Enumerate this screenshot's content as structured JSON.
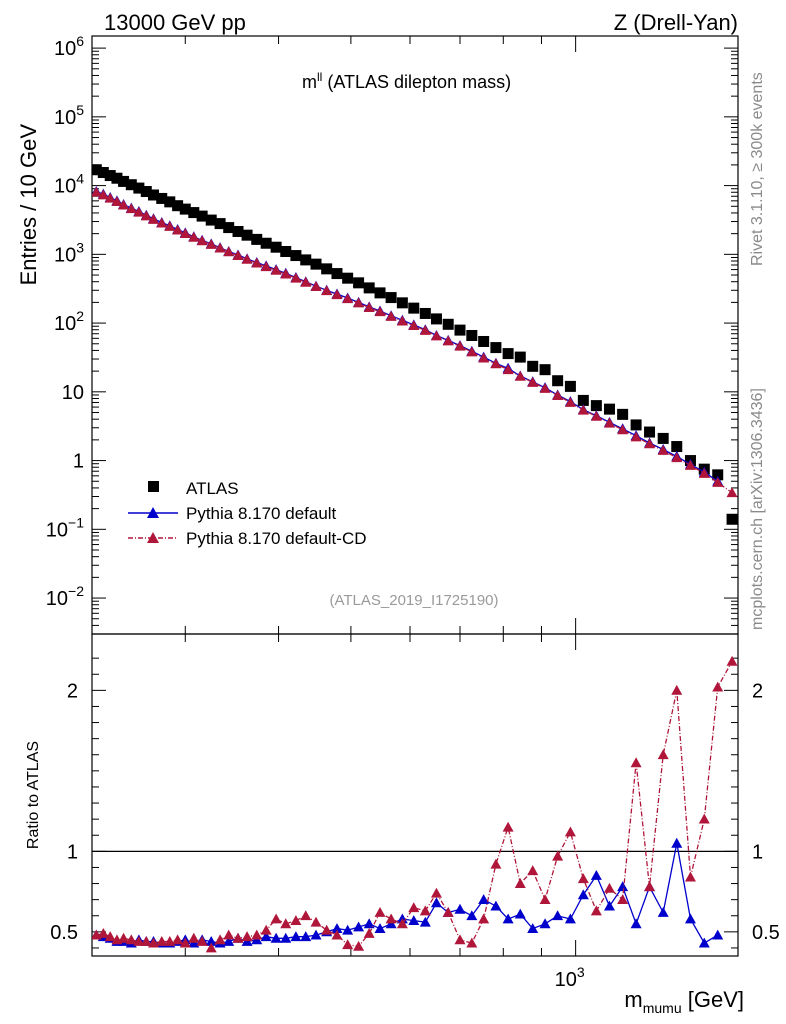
{
  "header": {
    "left_title": "13000 GeV pp",
    "right_title": "Z (Drell-Yan)"
  },
  "plot_title": {
    "main": "m",
    "sup": "ll",
    "rest": " (ATLAS dilepton mass)"
  },
  "side_notes": {
    "rivet": "Rivet 3.1.10, ≥ 300k events",
    "mcplots": "mcplots.cern.ch [arXiv:1306.3436]"
  },
  "analysis_id": "(ATLAS_2019_I1725190)",
  "chart_data": [
    {
      "type": "scatter",
      "panel": "main",
      "ylabel": "Entries / 10 GeV",
      "yscale": "log",
      "xscale": "log",
      "xlim": [
        225,
        1650
      ],
      "ylim": [
        0.003,
        1500000
      ],
      "y_ticks": [
        {
          "value": 1000000,
          "base": "10",
          "exp": "6"
        },
        {
          "value": 100000,
          "base": "10",
          "exp": "5"
        },
        {
          "value": 10000,
          "base": "10",
          "exp": "4"
        },
        {
          "value": 1000,
          "base": "10",
          "exp": "3"
        },
        {
          "value": 100,
          "base": "10",
          "exp": "2"
        },
        {
          "value": 10,
          "base": "10",
          "exp": ""
        },
        {
          "value": 1,
          "base": "1",
          "exp": ""
        },
        {
          "value": 0.1,
          "base": "10",
          "exp": "−1"
        },
        {
          "value": 0.01,
          "base": "10",
          "exp": "−2"
        }
      ],
      "legend": {
        "position": "bottom-left",
        "entries": [
          "ATLAS",
          "Pythia 8.170 default",
          "Pythia 8.170 default-CD"
        ]
      },
      "series": [
        {
          "name": "ATLAS",
          "color": "#000000",
          "marker": "square",
          "x": [
            228,
            233,
            238,
            243,
            248,
            254,
            260,
            266,
            272,
            279,
            286,
            293,
            300,
            308,
            316,
            325,
            334,
            343,
            353,
            363,
            374,
            385,
            397,
            409,
            422,
            435,
            449,
            464,
            479,
            495,
            512,
            529,
            547,
            566,
            586,
            607,
            629,
            651,
            675,
            700,
            726,
            753,
            782,
            812,
            843,
            876,
            910,
            946,
            984,
            1024,
            1066,
            1110,
            1156,
            1205,
            1256,
            1310,
            1366,
            1425,
            1487,
            1550,
            1620
          ],
          "values": [
            17000,
            15500,
            14000,
            12800,
            11500,
            10300,
            9200,
            8200,
            7300,
            6500,
            5800,
            5100,
            4550,
            4050,
            3600,
            3150,
            2800,
            2450,
            2150,
            1900,
            1650,
            1450,
            1270,
            1100,
            960,
            830,
            720,
            615,
            525,
            450,
            385,
            325,
            275,
            235,
            197,
            165,
            138,
            115,
            96,
            79,
            66,
            54,
            44,
            36,
            32,
            23.5,
            21,
            14.5,
            12,
            7.5,
            6.3,
            5.6,
            4.7,
            3.3,
            2.6,
            2.1,
            1.6,
            1.0,
            0.75,
            0.62,
            0.14
          ]
        },
        {
          "name": "Pythia 8.170 default",
          "color": "#0000cc",
          "marker": "triangle",
          "x": [
            228,
            233,
            238,
            243,
            248,
            254,
            260,
            266,
            272,
            279,
            286,
            293,
            300,
            308,
            316,
            325,
            334,
            343,
            353,
            363,
            374,
            385,
            397,
            409,
            422,
            435,
            449,
            464,
            479,
            495,
            512,
            529,
            547,
            566,
            586,
            607,
            629,
            651,
            675,
            700,
            726,
            753,
            782,
            812,
            843,
            876,
            910,
            946,
            984,
            1024,
            1066,
            1110,
            1156,
            1205,
            1256,
            1310,
            1366,
            1425,
            1487,
            1550
          ],
          "values": [
            8200,
            7500,
            6700,
            6000,
            5300,
            4700,
            4200,
            3700,
            3300,
            2900,
            2600,
            2300,
            2050,
            1800,
            1600,
            1420,
            1250,
            1100,
            980,
            860,
            760,
            680,
            600,
            530,
            460,
            400,
            345,
            300,
            265,
            232,
            200,
            172,
            150,
            128,
            110,
            94,
            80,
            66,
            56,
            47,
            39,
            32,
            26,
            22,
            17,
            14,
            11.5,
            9,
            7.2,
            5.5,
            4.5,
            3.6,
            2.9,
            2.3,
            1.8,
            1.45,
            1.15,
            0.88,
            0.68,
            0.5
          ]
        },
        {
          "name": "Pythia 8.170 default-CD",
          "color": "#b0163a",
          "marker": "triangle",
          "x": [
            228,
            233,
            238,
            243,
            248,
            254,
            260,
            266,
            272,
            279,
            286,
            293,
            300,
            308,
            316,
            325,
            334,
            343,
            353,
            363,
            374,
            385,
            397,
            409,
            422,
            435,
            449,
            464,
            479,
            495,
            512,
            529,
            547,
            566,
            586,
            607,
            629,
            651,
            675,
            700,
            726,
            753,
            782,
            812,
            843,
            876,
            910,
            946,
            984,
            1024,
            1066,
            1110,
            1156,
            1205,
            1256,
            1310,
            1366,
            1425,
            1487,
            1550,
            1620
          ],
          "values": [
            8000,
            7300,
            6550,
            5850,
            5200,
            4600,
            4100,
            3620,
            3220,
            2850,
            2540,
            2250,
            2000,
            1770,
            1570,
            1390,
            1230,
            1085,
            960,
            845,
            745,
            660,
            585,
            515,
            450,
            392,
            340,
            295,
            258,
            226,
            196,
            168,
            146,
            125,
            107,
            92,
            78,
            65,
            55,
            46,
            38,
            31,
            25.5,
            21,
            16.8,
            13.7,
            11.2,
            8.8,
            7,
            5.4,
            4.4,
            3.5,
            2.8,
            2.2,
            1.75,
            1.4,
            1.1,
            0.85,
            0.65,
            0.48,
            0.34
          ]
        }
      ]
    },
    {
      "type": "line",
      "panel": "ratio",
      "ylabel": "Ratio to ATLAS",
      "xlabel_main": "m",
      "xlabel_sub": "mumu",
      "xlabel_unit": " [GeV]",
      "xscale": "log",
      "xlim": [
        225,
        1650
      ],
      "ylim": [
        0.35,
        2.35
      ],
      "x_ticks": [
        {
          "value": 1000,
          "base": "10",
          "exp": "3"
        }
      ],
      "y_ticks": [
        {
          "value": 0.5,
          "label": "0.5"
        },
        {
          "value": 1,
          "label": "1"
        },
        {
          "value": 2,
          "label": "2"
        }
      ],
      "reference_line": 1,
      "series": [
        {
          "name": "Pythia 8.170 default",
          "color": "#0000cc",
          "x": [
            228,
            233,
            238,
            243,
            248,
            254,
            260,
            266,
            272,
            279,
            286,
            293,
            300,
            308,
            316,
            325,
            334,
            343,
            353,
            363,
            374,
            385,
            397,
            409,
            422,
            435,
            449,
            464,
            479,
            495,
            512,
            529,
            547,
            566,
            586,
            607,
            629,
            651,
            675,
            700,
            726,
            753,
            782,
            812,
            843,
            876,
            910,
            946,
            984,
            1024,
            1066,
            1110,
            1156,
            1205,
            1256,
            1310,
            1366,
            1425,
            1487,
            1550
          ],
          "values": [
            0.48,
            0.47,
            0.46,
            0.44,
            0.44,
            0.43,
            0.45,
            0.44,
            0.44,
            0.43,
            0.43,
            0.44,
            0.45,
            0.43,
            0.45,
            0.44,
            0.43,
            0.44,
            0.46,
            0.44,
            0.45,
            0.47,
            0.46,
            0.46,
            0.47,
            0.47,
            0.48,
            0.5,
            0.52,
            0.51,
            0.53,
            0.55,
            0.52,
            0.55,
            0.58,
            0.57,
            0.56,
            0.68,
            0.62,
            0.64,
            0.6,
            0.7,
            0.66,
            0.58,
            0.61,
            0.52,
            0.55,
            0.6,
            0.58,
            0.73,
            0.85,
            0.66,
            0.78,
            0.55,
            0.78,
            0.62,
            1.05,
            0.58,
            0.43,
            0.48
          ]
        },
        {
          "name": "Pythia 8.170 default-CD",
          "color": "#b0163a",
          "x": [
            228,
            233,
            238,
            243,
            248,
            254,
            260,
            266,
            272,
            279,
            286,
            293,
            300,
            308,
            316,
            325,
            334,
            343,
            353,
            363,
            374,
            385,
            397,
            409,
            422,
            435,
            449,
            464,
            479,
            495,
            512,
            529,
            547,
            566,
            586,
            607,
            629,
            651,
            675,
            700,
            726,
            753,
            782,
            812,
            843,
            876,
            910,
            946,
            984,
            1024,
            1066,
            1110,
            1156,
            1205,
            1256,
            1310,
            1366,
            1425,
            1487,
            1550,
            1620
          ],
          "values": [
            0.48,
            0.49,
            0.47,
            0.45,
            0.46,
            0.45,
            0.44,
            0.44,
            0.43,
            0.44,
            0.44,
            0.45,
            0.43,
            0.46,
            0.44,
            0.4,
            0.45,
            0.48,
            0.46,
            0.47,
            0.48,
            0.51,
            0.58,
            0.55,
            0.57,
            0.6,
            0.56,
            0.51,
            0.48,
            0.42,
            0.41,
            0.49,
            0.62,
            0.58,
            0.55,
            0.65,
            0.63,
            0.74,
            0.62,
            0.45,
            0.43,
            0.58,
            0.92,
            1.15,
            0.8,
            0.88,
            0.7,
            0.97,
            1.12,
            0.83,
            0.63,
            0.77,
            0.7,
            1.55,
            0.78,
            1.6,
            2.0,
            0.84,
            1.2,
            2.02,
            2.18
          ]
        }
      ]
    }
  ]
}
